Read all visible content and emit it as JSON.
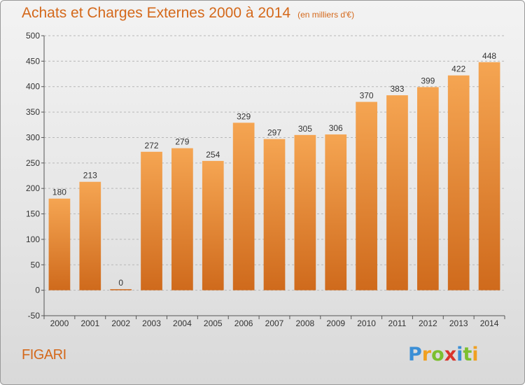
{
  "title": "Achats et Charges Externes 2000 à 2014",
  "subtitle": "(en milliers d'€)",
  "commune": "FIGARI",
  "logo": {
    "text": "Proxiti",
    "letters": [
      {
        "char": "P",
        "color": "#3b8fd6"
      },
      {
        "char": "r",
        "color": "#f0a020"
      },
      {
        "char": "o",
        "color": "#7cbf2f"
      },
      {
        "char": "x",
        "color": "#d9342b"
      },
      {
        "char": "i",
        "color": "#3b8fd6"
      },
      {
        "char": "t",
        "color": "#7cbf2f"
      },
      {
        "char": "i",
        "color": "#f0a020"
      }
    ]
  },
  "colors": {
    "accent": "#d4681a",
    "bar_top": "#f5a552",
    "bar_bottom": "#cf6a1c",
    "grid": "#b8b8b8"
  },
  "chart_data": {
    "type": "bar",
    "title": "Achats et Charges Externes 2000 à 2014",
    "subtitle": "(en milliers d'€)",
    "categories": [
      "2000",
      "2001",
      "2002",
      "2003",
      "2004",
      "2005",
      "2006",
      "2007",
      "2008",
      "2009",
      "2010",
      "2011",
      "2012",
      "2013",
      "2014"
    ],
    "values": [
      180,
      213,
      0,
      272,
      279,
      254,
      329,
      297,
      305,
      306,
      370,
      383,
      399,
      422,
      448
    ],
    "ylim": [
      -50,
      500
    ],
    "yticks": [
      -50,
      0,
      50,
      100,
      150,
      200,
      250,
      300,
      350,
      400,
      450,
      500
    ],
    "grid": true,
    "xlabel": "",
    "ylabel": ""
  }
}
